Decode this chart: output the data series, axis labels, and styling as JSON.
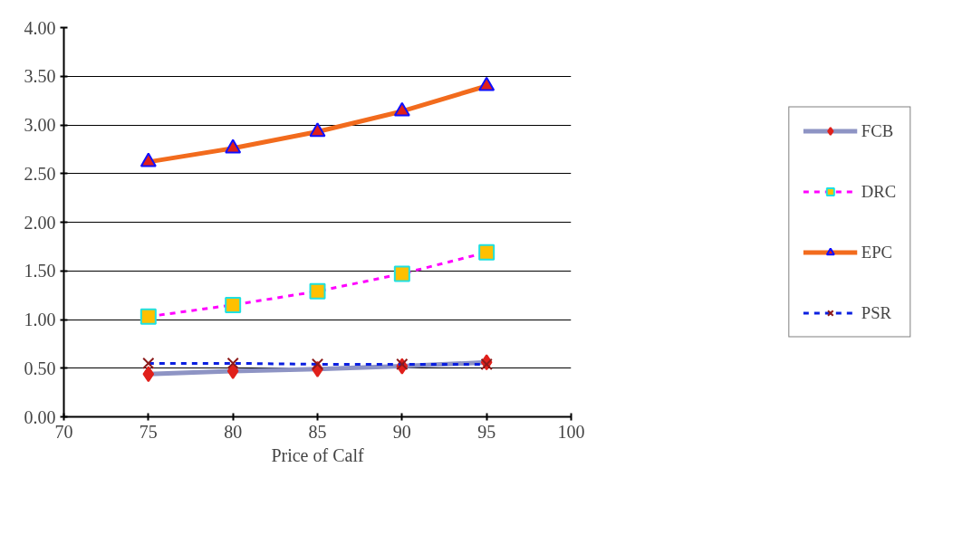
{
  "chart_data": {
    "type": "line",
    "xlabel": "Price of Calf",
    "x": [
      75,
      80,
      85,
      90,
      95
    ],
    "series": [
      {
        "name": "FCB",
        "color": "#8e94c4",
        "colors": [
          "#e0201b",
          "#e0201b",
          "#e0201b",
          "#e0201b",
          "#e0201b"
        ],
        "marker": "diamond",
        "line_style": "solid",
        "values": [
          0.44,
          0.47,
          0.49,
          0.52,
          0.56
        ]
      },
      {
        "name": "DRC",
        "color": "#ff00ff",
        "colors": [
          "#ffc000",
          "#ffc000",
          "#ffc000",
          "#ffc000",
          "#ffc000"
        ],
        "marker": "square",
        "line_style": "dashed",
        "values": [
          1.03,
          1.15,
          1.29,
          1.47,
          1.69
        ]
      },
      {
        "name": "EPC",
        "color": "#f26b1d",
        "colors": [
          "#e0201b",
          "#e0201b",
          "#e0201b",
          "#e0201b",
          "#e0201b"
        ],
        "marker": "triangle",
        "line_style": "solid",
        "values": [
          2.62,
          2.76,
          2.93,
          3.14,
          3.4
        ]
      },
      {
        "name": "PSR",
        "color": "#0a1fe0",
        "colors": [
          "#8b1a1a",
          "#8b1a1a",
          "#8b1a1a",
          "#8b1a1a",
          "#8b1a1a"
        ],
        "marker": "cross",
        "line_style": "dashed",
        "values": [
          0.55,
          0.55,
          0.54,
          0.54,
          0.54
        ]
      }
    ],
    "xlim": [
      70,
      100
    ],
    "xticks": [
      70,
      75,
      80,
      85,
      90,
      95,
      100
    ],
    "ylim": [
      0,
      4
    ],
    "yticks": [
      {
        "value": 0,
        "label": "0.00"
      },
      {
        "value": 0.5,
        "label": "0.50"
      },
      {
        "value": 1,
        "label": "1.00"
      },
      {
        "value": 1.5,
        "label": "1.50"
      },
      {
        "value": 2,
        "label": "2.00"
      },
      {
        "value": 2.5,
        "label": "2.50"
      },
      {
        "value": 3,
        "label": "3.00"
      },
      {
        "value": 3.5,
        "label": "3.50"
      },
      {
        "value": 4,
        "label": "4.00"
      }
    ],
    "grid": "y",
    "legend": "right"
  }
}
